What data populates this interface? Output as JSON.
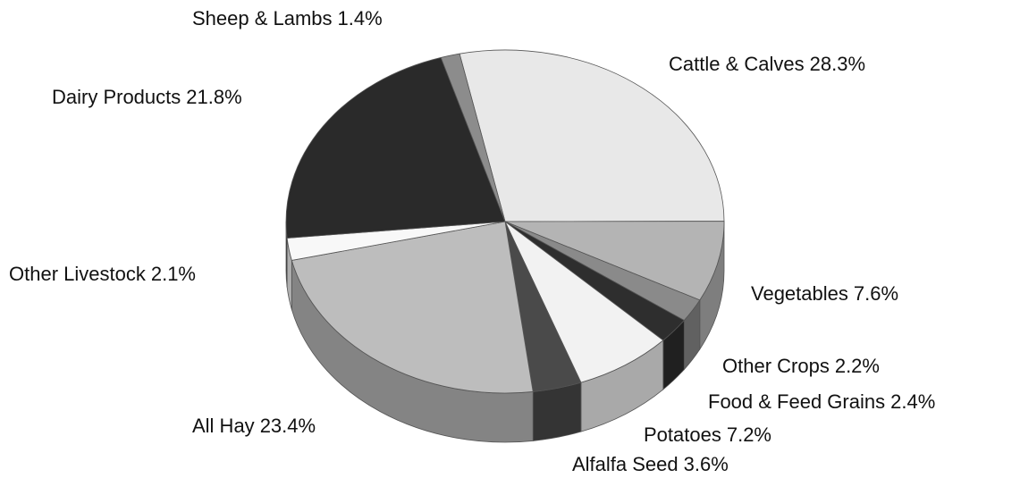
{
  "chart_data": {
    "type": "pie",
    "categories": [
      "Cattle & Calves",
      "Vegetables",
      "Other Crops",
      "Food & Feed Grains",
      "Potatoes",
      "Alfalfa Seed",
      "All Hay",
      "Other Livestock",
      "Dairy Products",
      "Sheep & Lambs"
    ],
    "values": [
      28.3,
      7.6,
      2.2,
      2.4,
      7.2,
      3.6,
      23.4,
      2.1,
      21.8,
      1.4
    ],
    "value_labels": [
      "28.3%",
      "7.6%",
      "2.2%",
      "2.4%",
      "7.2%",
      "3.6%",
      "23.4%",
      "2.1%",
      "21.8%",
      "1.4%"
    ],
    "colors": [
      "#e8e8e8",
      "#b4b4b4",
      "#8a8a8a",
      "#2e2e2e",
      "#f2f2f2",
      "#4a4a4a",
      "#bdbdbd",
      "#f8f8f8",
      "#2a2a2a",
      "#8c8c8c"
    ]
  }
}
